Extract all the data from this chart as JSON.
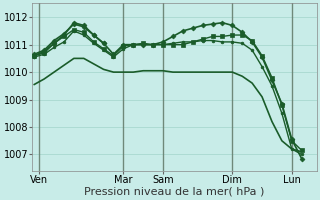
{
  "bg_color": "#c8ece8",
  "grid_color": "#a8d8d0",
  "line_color": "#1a5c2a",
  "sep_color": "#556655",
  "xlabel": "Pression niveau de la mer( hPa )",
  "xlabel_fontsize": 8,
  "tick_fontsize": 7,
  "ylim": [
    1006.4,
    1012.5
  ],
  "yticks": [
    1007,
    1008,
    1009,
    1010,
    1011,
    1012
  ],
  "x_day_labels": [
    "Ven",
    "Mar",
    "Sam",
    "Dim",
    "Lun"
  ],
  "x_day_positions": [
    0.5,
    9,
    13,
    20,
    26
  ],
  "x_sep_positions": [
    0.5,
    9,
    13,
    20,
    26
  ],
  "xlim": [
    -0.2,
    28.5
  ],
  "lines": [
    {
      "x": [
        0,
        1,
        2,
        3,
        4,
        5,
        6,
        7,
        8,
        9,
        10,
        11,
        12,
        13,
        14,
        15,
        16,
        17,
        18,
        19,
        20,
        21,
        22,
        23,
        24,
        25,
        26,
        27
      ],
      "y": [
        1009.55,
        1009.75,
        1010.0,
        1010.25,
        1010.5,
        1010.5,
        1010.3,
        1010.1,
        1010.0,
        1010.0,
        1010.0,
        1010.05,
        1010.05,
        1010.05,
        1010.0,
        1010.0,
        1010.0,
        1010.0,
        1010.0,
        1010.0,
        1010.0,
        1009.85,
        1009.6,
        1009.1,
        1008.2,
        1007.5,
        1007.2,
        1007.1
      ],
      "marker": null,
      "lw": 1.2
    },
    {
      "x": [
        0,
        1,
        2,
        3,
        4,
        5,
        6,
        7,
        8,
        9,
        10,
        11,
        12,
        13,
        14,
        15,
        16,
        17,
        18,
        19,
        20,
        21,
        22,
        23,
        24,
        25,
        26,
        27
      ],
      "y": [
        1010.6,
        1010.7,
        1011.05,
        1011.3,
        1011.55,
        1011.45,
        1011.1,
        1010.85,
        1010.6,
        1010.95,
        1011.0,
        1011.05,
        1011.0,
        1011.0,
        1011.0,
        1011.0,
        1011.1,
        1011.2,
        1011.3,
        1011.3,
        1011.35,
        1011.35,
        1011.15,
        1010.6,
        1009.8,
        1008.8,
        1007.5,
        1007.15
      ],
      "marker": "s",
      "markersize": 2.5,
      "lw": 1.0
    },
    {
      "x": [
        0,
        1,
        2,
        3,
        4,
        5,
        6,
        7
      ],
      "y": [
        1010.65,
        1010.8,
        1011.15,
        1011.4,
        1011.75,
        1011.65,
        1011.35,
        1011.05
      ],
      "marker": "D",
      "markersize": 2.5,
      "lw": 1.2
    },
    {
      "x": [
        0,
        1,
        2,
        3,
        4,
        5,
        6,
        7,
        8,
        9,
        10,
        11,
        12,
        13,
        14,
        15,
        16,
        17,
        18,
        19,
        20,
        21,
        22,
        23,
        24,
        25,
        26,
        27
      ],
      "y": [
        1010.6,
        1010.75,
        1011.05,
        1011.35,
        1011.8,
        1011.7,
        1011.35,
        1011.05,
        1010.65,
        1011.0,
        1011.0,
        1011.0,
        1011.0,
        1011.1,
        1011.3,
        1011.5,
        1011.6,
        1011.7,
        1011.75,
        1011.8,
        1011.7,
        1011.45,
        1011.1,
        1010.55,
        1009.7,
        1008.85,
        1007.55,
        1006.85
      ],
      "marker": "D",
      "markersize": 2.5,
      "lw": 1.2
    },
    {
      "x": [
        0,
        1,
        2,
        3,
        4,
        5,
        6,
        7,
        8,
        9,
        10,
        11,
        12,
        13,
        14,
        15,
        16,
        17,
        18,
        19,
        20,
        21,
        22,
        23,
        24,
        25,
        26,
        27
      ],
      "y": [
        1010.55,
        1010.65,
        1010.9,
        1011.1,
        1011.5,
        1011.35,
        1011.05,
        1010.8,
        1010.55,
        1010.85,
        1011.0,
        1011.0,
        1011.0,
        1011.0,
        1011.05,
        1011.1,
        1011.1,
        1011.15,
        1011.15,
        1011.1,
        1011.1,
        1011.05,
        1010.8,
        1010.2,
        1009.5,
        1008.5,
        1007.2,
        1007.0
      ],
      "marker": "o",
      "markersize": 2.0,
      "lw": 1.0
    }
  ]
}
